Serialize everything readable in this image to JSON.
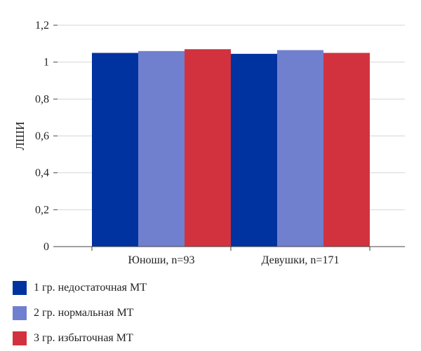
{
  "chart_data": {
    "type": "bar",
    "ylabel": "ЛШИ",
    "categories": [
      "Юноши, n=93",
      "Девушки, n=171"
    ],
    "series": [
      {
        "name": "1 гр. недостаточная МТ",
        "color": "#0033a0",
        "values": [
          1.05,
          1.045
        ]
      },
      {
        "name": "2 гр. нормальная МТ",
        "color": "#7080cf",
        "values": [
          1.06,
          1.065
        ]
      },
      {
        "name": "3 гр. избыточная МТ",
        "color": "#d2323e",
        "values": [
          1.07,
          1.05
        ]
      }
    ],
    "ylim": [
      0,
      1.2
    ],
    "yticks": [
      0,
      0.2,
      0.4,
      0.6,
      0.8,
      1,
      1.2
    ],
    "ytick_labels": [
      "0",
      "0,2",
      "0,4",
      "0,6",
      "0,8",
      "1",
      "1,2"
    ],
    "grid": true,
    "legend_position": "bottom-left"
  }
}
